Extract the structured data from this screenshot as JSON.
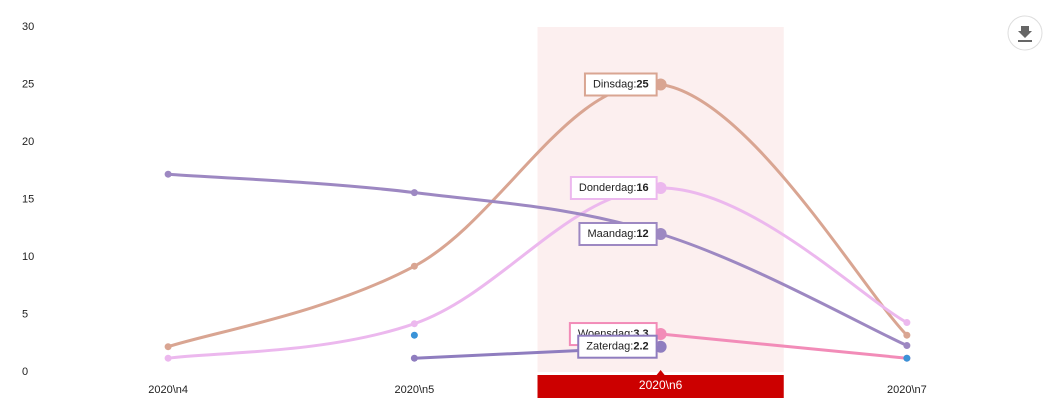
{
  "chart_data": {
    "type": "line",
    "categories": [
      "2020\\n4",
      "2020\\n5",
      "2020\\n6",
      "2020\\n7"
    ],
    "series": [
      {
        "name": "Dinsdag",
        "color": "#d9a592",
        "values": [
          2.2,
          9.2,
          25,
          3.2
        ]
      },
      {
        "name": "Donderdag",
        "color": "#ecb8ee",
        "values": [
          1.2,
          4.2,
          16,
          4.3
        ]
      },
      {
        "name": "Maandag",
        "color": "#9d88c2",
        "values": [
          17.2,
          15.6,
          12,
          2.3
        ]
      },
      {
        "name": "Woensdag",
        "color": "#f28cb8",
        "values": [
          null,
          null,
          3.3,
          1.2
        ]
      },
      {
        "name": "Zaterdag",
        "color": "#8f7dbf",
        "values": [
          null,
          1.2,
          2.2,
          null
        ]
      },
      {
        "color": "#3a93d8",
        "values": [
          null,
          3.2,
          null,
          1.2
        ]
      }
    ],
    "ylim": [
      0,
      30
    ],
    "yticks": [
      0,
      5,
      10,
      15,
      20,
      25,
      30
    ],
    "highlight_index": 2,
    "label_separator": ":"
  }
}
